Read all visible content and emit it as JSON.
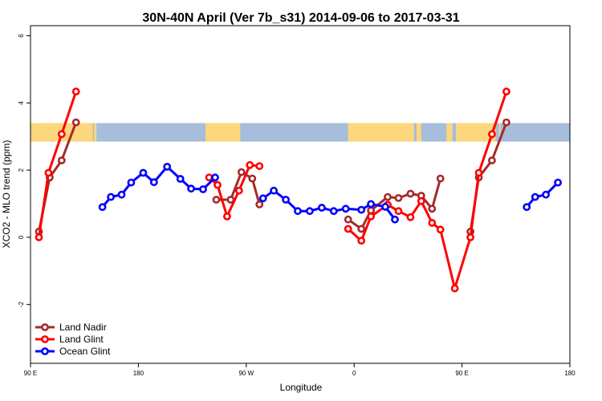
{
  "chart_data": {
    "type": "line",
    "title": "30N-40N April (Ver 7b_s31)   2014-09-06 to 2017-03-31",
    "xlabel": "Longitude",
    "ylabel": "XCO2 - MLO trend (ppm)",
    "xlim": [
      90,
      540
    ],
    "ylim": [
      -3.75,
      6.3
    ],
    "x_ticks": [
      {
        "value": 90,
        "label": "90 E"
      },
      {
        "value": 180,
        "label": "180"
      },
      {
        "value": 270,
        "label": "90 W"
      },
      {
        "value": 360,
        "label": "0"
      },
      {
        "value": 450,
        "label": "90 E"
      },
      {
        "value": 540,
        "label": "180"
      }
    ],
    "y_ticks": [
      {
        "value": -2,
        "label": "-2"
      },
      {
        "value": 0,
        "label": "0"
      },
      {
        "value": 2,
        "label": "2"
      },
      {
        "value": 4,
        "label": "4"
      },
      {
        "value": 6,
        "label": "6"
      }
    ],
    "map_strip": {
      "y_range": [
        2.85,
        3.4
      ],
      "ocean_color": "#a6bddb",
      "land_color": "#fdd77d",
      "land_spans": [
        [
          90,
          142
        ],
        [
          143,
          145
        ],
        [
          236,
          265
        ],
        [
          355,
          410
        ],
        [
          412,
          416
        ],
        [
          437,
          442
        ],
        [
          445,
          478
        ],
        [
          481,
          482
        ]
      ]
    },
    "legend": {
      "position": "bottom-left"
    },
    "series": [
      {
        "name": "Land Nadir",
        "color": "#a52a2a",
        "segments": [
          [
            [
              97,
              0.17
            ],
            [
              106,
              1.78
            ],
            [
              116,
              2.29
            ],
            [
              128,
              3.42
            ]
          ],
          [
            [
              245,
              1.12
            ],
            [
              257,
              1.12
            ],
            [
              266,
              1.94
            ],
            [
              275,
              1.75
            ],
            [
              281,
              0.98
            ]
          ],
          [
            [
              355,
              0.53
            ],
            [
              366,
              0.25
            ],
            [
              374,
              0.8
            ],
            [
              388,
              1.2
            ],
            [
              397,
              1.17
            ],
            [
              407,
              1.3
            ],
            [
              416,
              1.24
            ],
            [
              425,
              0.85
            ],
            [
              432,
              1.75
            ]
          ],
          [
            [
              457,
              0.17
            ],
            [
              464,
              1.78
            ],
            [
              475,
              2.29
            ],
            [
              487,
              3.42
            ]
          ]
        ]
      },
      {
        "name": "Land Glint",
        "color": "#ff0000",
        "segments": [
          [
            [
              97,
              0.0
            ],
            [
              105,
              1.92
            ],
            [
              116,
              3.07
            ],
            [
              128,
              4.34
            ]
          ],
          [
            [
              239,
              1.78
            ],
            [
              246,
              1.56
            ],
            [
              254,
              0.62
            ],
            [
              264,
              1.39
            ],
            [
              273,
              2.15
            ],
            [
              281,
              2.12
            ]
          ],
          [
            [
              355,
              0.25
            ],
            [
              366,
              -0.1
            ],
            [
              374,
              0.62
            ],
            [
              388,
              0.97
            ],
            [
              397,
              0.78
            ],
            [
              407,
              0.6
            ],
            [
              416,
              1.08
            ],
            [
              425,
              0.43
            ],
            [
              432,
              0.23
            ],
            [
              444,
              -1.52
            ],
            [
              457,
              0.0
            ],
            [
              464,
              1.92
            ],
            [
              475,
              3.07
            ],
            [
              487,
              4.34
            ]
          ]
        ]
      },
      {
        "name": "Ocean Glint",
        "color": "#0000ff",
        "segments": [
          [
            [
              150,
              0.9
            ],
            [
              157,
              1.2
            ],
            [
              166,
              1.27
            ],
            [
              174,
              1.63
            ],
            [
              184,
              1.92
            ],
            [
              193,
              1.64
            ],
            [
              204,
              2.1
            ],
            [
              215,
              1.74
            ],
            [
              224,
              1.45
            ],
            [
              234,
              1.43
            ],
            [
              244,
              1.78
            ]
          ],
          [
            [
              284,
              1.16
            ],
            [
              293,
              1.39
            ],
            [
              303,
              1.12
            ],
            [
              313,
              0.78
            ],
            [
              323,
              0.78
            ],
            [
              333,
              0.88
            ],
            [
              343,
              0.78
            ],
            [
              353,
              0.85
            ],
            [
              366,
              0.82
            ],
            [
              374,
              0.99
            ],
            [
              386,
              0.91
            ],
            [
              394,
              0.53
            ]
          ],
          [
            [
              504,
              0.9
            ],
            [
              511,
              1.2
            ],
            [
              520,
              1.27
            ],
            [
              530,
              1.63
            ]
          ]
        ]
      }
    ]
  }
}
